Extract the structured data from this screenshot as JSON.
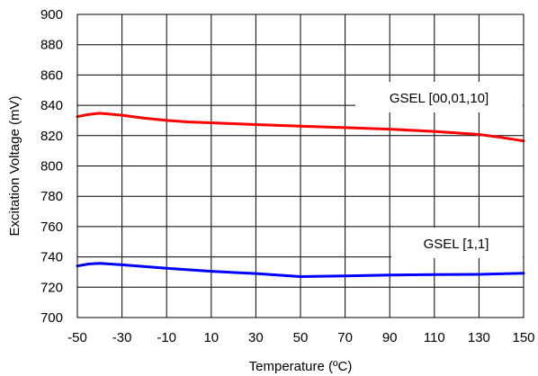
{
  "chart_data": {
    "type": "line",
    "title": "",
    "xlabel": "Temperature (ºC)",
    "ylabel": "Excitation Voltage (mV)",
    "xlim": [
      -50,
      150
    ],
    "ylim": [
      700,
      900
    ],
    "x_ticks": [
      -50,
      -30,
      -10,
      10,
      30,
      50,
      70,
      90,
      110,
      130,
      150
    ],
    "y_ticks": [
      700,
      720,
      740,
      760,
      780,
      800,
      820,
      840,
      860,
      880,
      900
    ],
    "grid": true,
    "series": [
      {
        "label": "GSEL [00,01,10]",
        "color": "#ff0000",
        "x": [
          -50,
          -45,
          -40,
          -30,
          -20,
          -10,
          0,
          10,
          30,
          50,
          70,
          90,
          110,
          130,
          140,
          150
        ],
        "y": [
          832.5,
          834,
          834.8,
          833.5,
          831.5,
          830,
          829,
          828.5,
          827.3,
          826.3,
          825.3,
          824.3,
          822.8,
          820.8,
          818.8,
          816.5
        ]
      },
      {
        "label": "GSEL [1,1]",
        "color": "#0000ff",
        "x": [
          -50,
          -45,
          -40,
          -30,
          -10,
          10,
          30,
          50,
          70,
          90,
          110,
          130,
          150
        ],
        "y": [
          734,
          735.3,
          735.8,
          734.8,
          732.5,
          730.5,
          729,
          727,
          727.5,
          728,
          728.3,
          728.5,
          729.2
        ]
      }
    ]
  }
}
